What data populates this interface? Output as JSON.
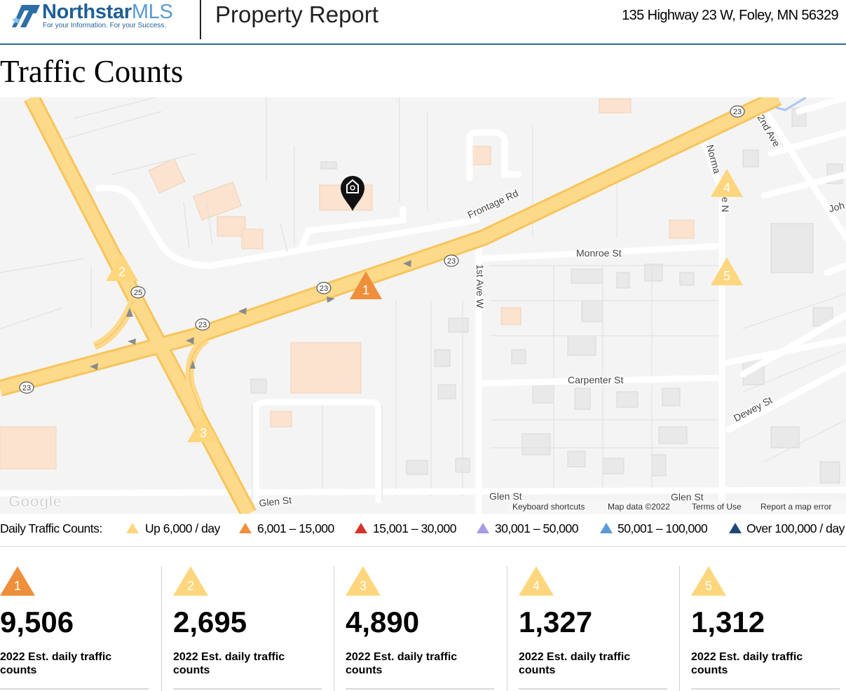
{
  "header": {
    "brand_name": "Northstar",
    "brand_suffix": "MLS",
    "tagline": "For your Information. For your Success.",
    "report_title": "Property Report",
    "address": "135 Highway 23 W, Foley, MN 56329"
  },
  "section_title": "Traffic Counts",
  "map": {
    "street_labels": {
      "frontage": "Frontage Rd",
      "monroe": "Monroe St",
      "first_ave": "1st Ave W",
      "norma": "Norma",
      "norma2": "e N",
      "second_ave": "2nd Ave",
      "joh": "Joh",
      "carpenter": "Carpenter St",
      "dewey": "Dewey St",
      "glen1": "Glen St",
      "glen2": "Glen St",
      "glen3": "Glen St"
    },
    "route_shields": [
      "23",
      "23",
      "23",
      "23",
      "23",
      "25"
    ],
    "footer": {
      "google": "Google",
      "keyboard": "Keyboard shortcuts",
      "map_data": "Map data ©2022",
      "terms": "Terms of Use",
      "report": "Report a map error"
    },
    "markers": [
      "1",
      "2",
      "3",
      "4",
      "5"
    ],
    "property_icon": "home-pin-icon"
  },
  "legend": {
    "label": "Daily Traffic Counts:",
    "items": [
      {
        "text": "Up 6,000 / day",
        "color": "#fdd67d"
      },
      {
        "text": "6,001 – 15,000",
        "color": "#ee8f3c"
      },
      {
        "text": "15,001 – 30,000",
        "color": "#d5322c"
      },
      {
        "text": "30,001 – 50,000",
        "color": "#a898e6"
      },
      {
        "text": "50,001 – 100,000",
        "color": "#5b9ad6"
      },
      {
        "text": "Over 100,000 / day",
        "color": "#1f4876"
      }
    ]
  },
  "counts": [
    {
      "marker": "1",
      "value": "9,506",
      "desc": "2022 Est. daily traffic counts",
      "color": "#ee8f3c"
    },
    {
      "marker": "2",
      "value": "2,695",
      "desc": "2022 Est. daily traffic counts",
      "color": "#fdd67d"
    },
    {
      "marker": "3",
      "value": "4,890",
      "desc": "2022 Est. daily traffic counts",
      "color": "#fdd67d"
    },
    {
      "marker": "4",
      "value": "1,327",
      "desc": "2022 Est. daily traffic counts",
      "color": "#fdd67d"
    },
    {
      "marker": "5",
      "value": "1,312",
      "desc": "2022 Est. daily traffic counts",
      "color": "#fdd67d"
    }
  ]
}
